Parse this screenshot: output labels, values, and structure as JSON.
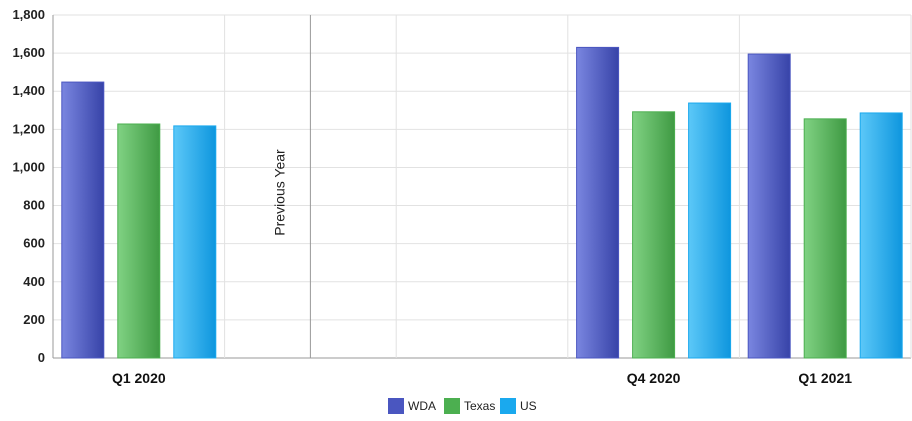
{
  "chart_data": {
    "type": "bar",
    "categories": [
      "Q1 2020",
      "",
      "",
      "Q4 2020",
      "Q1 2021"
    ],
    "series": [
      {
        "name": "WDA",
        "color": "#4a56c0",
        "values": [
          1448,
          null,
          null,
          1630,
          1595
        ]
      },
      {
        "name": "Texas",
        "color": "#4caf50",
        "values": [
          1228,
          null,
          null,
          1292,
          1255
        ]
      },
      {
        "name": "US",
        "color": "#1aa9ee",
        "values": [
          1218,
          null,
          null,
          1338,
          1286
        ]
      }
    ],
    "ylim": [
      0,
      1800
    ],
    "yticks": [
      "0",
      "200",
      "400",
      "600",
      "800",
      "1,000",
      "1,200",
      "1,400",
      "1,600",
      "1,800"
    ],
    "divider_label": "Previous Year",
    "grid": true,
    "legend": "bottom-center"
  }
}
